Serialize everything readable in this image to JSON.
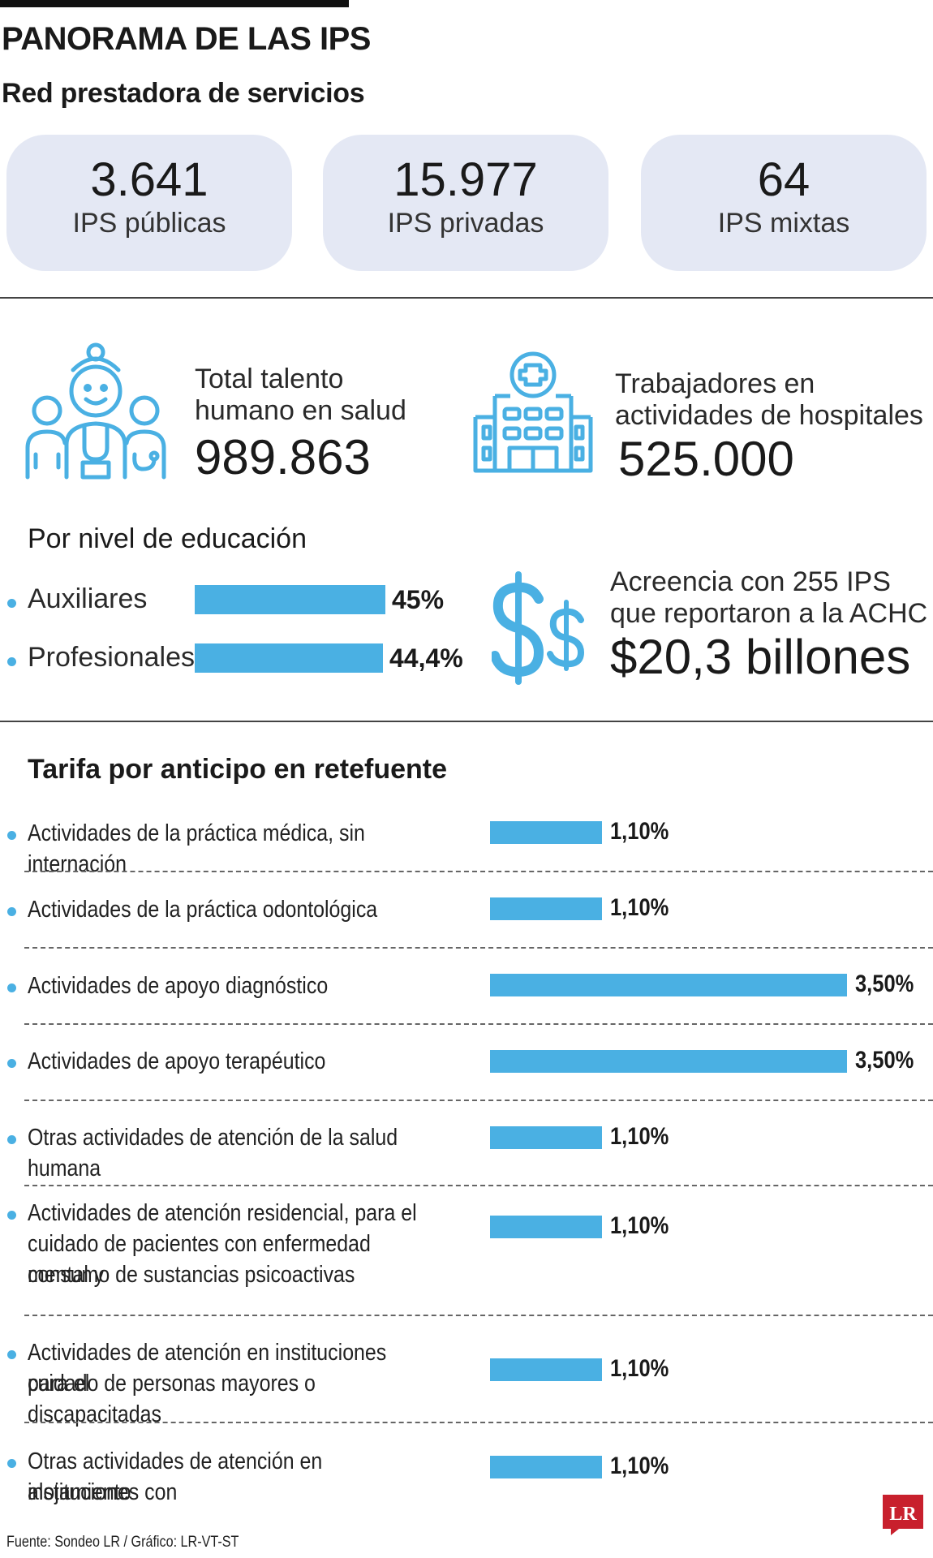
{
  "header": {
    "title": "PANORAMA DE LAS IPS",
    "subtitle": "Red prestadora de servicios"
  },
  "stats": [
    {
      "value": "3.641",
      "label": "IPS públicas"
    },
    {
      "value": "15.977",
      "label": "IPS privadas"
    },
    {
      "value": "64",
      "label": "IPS mixtas"
    }
  ],
  "talent": {
    "icon": "health-staff-icon",
    "label_line1": "Total talento",
    "label_line2": "humano en salud",
    "value": "989.863"
  },
  "hospital": {
    "icon": "hospital-icon",
    "label_line1": "Trabajadores en",
    "label_line2": "actividades de hospitales",
    "value": "525.000"
  },
  "debt": {
    "icon": "dollar-icon",
    "label_line1": "Acreencia con 255 IPS",
    "label_line2": "que reportaron a la ACHC",
    "value": "$20,3 billones"
  },
  "colors": {
    "accent": "#4ab0e3",
    "card": "#e4e8f4",
    "logo": "#c8202d"
  },
  "chart_data": [
    {
      "type": "bar",
      "title": "Por nivel de educación",
      "categories": [
        "Auxiliares",
        "Profesionales"
      ],
      "values": [
        45,
        44.4
      ],
      "value_labels": [
        "45%",
        "44,4%"
      ],
      "unit": "%"
    },
    {
      "type": "bar",
      "title": "Tarifa por anticipo en retefuente",
      "categories": [
        [
          "Actividades de la práctica médica, sin internación"
        ],
        [
          "Actividades de la práctica odontológica"
        ],
        [
          "Actividades de apoyo diagnóstico"
        ],
        [
          "Actividades de apoyo terapéutico"
        ],
        [
          "Otras actividades de atención de la salud humana"
        ],
        [
          "Actividades de atención residencial, para el",
          "cuidado de pacientes con enfermedad mental y",
          "consumo de sustancias psicoactivas"
        ],
        [
          "Actividades de atención en instituciones para el",
          "cuidado de personas mayores o discapacitadas"
        ],
        [
          "Otras actividades de atención en instituciones con",
          "alojamiento"
        ]
      ],
      "values": [
        1.1,
        1.1,
        3.5,
        3.5,
        1.1,
        1.1,
        1.1,
        1.1
      ],
      "value_labels": [
        "1,10%",
        "1,10%",
        "3,50%",
        "3,50%",
        "1,10%",
        "1,10%",
        "1,10%",
        "1,10%"
      ],
      "unit": "%"
    }
  ],
  "footer": {
    "source": "Fuente: Sondeo LR / Gráfico: LR-VT-ST",
    "logo_text": "LR"
  }
}
